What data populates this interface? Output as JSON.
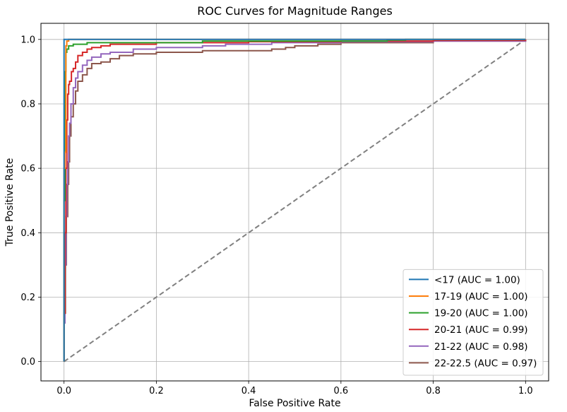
{
  "chart_data": {
    "type": "line",
    "title": "ROC Curves for Magnitude Ranges",
    "xlabel": "False Positive Rate",
    "ylabel": "True Positive Rate",
    "xlim": [
      -0.05,
      1.05
    ],
    "ylim": [
      -0.06,
      1.05
    ],
    "xticks": [
      0.0,
      0.2,
      0.4,
      0.6,
      0.8,
      1.0
    ],
    "yticks": [
      0.0,
      0.2,
      0.4,
      0.6,
      0.8,
      1.0
    ],
    "xtick_labels": [
      "0.0",
      "0.2",
      "0.4",
      "0.6",
      "0.8",
      "1.0"
    ],
    "ytick_labels": [
      "0.0",
      "0.2",
      "0.4",
      "0.6",
      "0.8",
      "1.0"
    ],
    "grid": true,
    "legend_position": "lower-right",
    "series": [
      {
        "name": "<17 (AUC = 1.00)",
        "color": "#1f77b4",
        "points": [
          [
            0,
            0
          ],
          [
            0,
            1.0
          ],
          [
            1.0,
            1.0
          ]
        ]
      },
      {
        "name": "17-19 (AUC = 1.00)",
        "color": "#ff7f0e",
        "points": [
          [
            0,
            0
          ],
          [
            0,
            0.6
          ],
          [
            0.002,
            0.65
          ],
          [
            0.004,
            0.98
          ],
          [
            0.006,
            0.995
          ],
          [
            0.01,
            1.0
          ],
          [
            1.0,
            1.0
          ]
        ]
      },
      {
        "name": "19-20 (AUC = 1.00)",
        "color": "#2ca02c",
        "points": [
          [
            0,
            0
          ],
          [
            0,
            0.5
          ],
          [
            0.002,
            0.9
          ],
          [
            0.004,
            0.96
          ],
          [
            0.006,
            0.97
          ],
          [
            0.01,
            0.98
          ],
          [
            0.02,
            0.985
          ],
          [
            0.05,
            0.99
          ],
          [
            0.15,
            0.99
          ],
          [
            0.3,
            0.995
          ],
          [
            0.7,
            0.998
          ],
          [
            0.74,
            1.0
          ],
          [
            1.0,
            1.0
          ]
        ]
      },
      {
        "name": "20-21 (AUC = 0.99)",
        "color": "#d62728",
        "points": [
          [
            0,
            0
          ],
          [
            0,
            0.15
          ],
          [
            0.002,
            0.4
          ],
          [
            0.004,
            0.6
          ],
          [
            0.006,
            0.75
          ],
          [
            0.008,
            0.83
          ],
          [
            0.01,
            0.86
          ],
          [
            0.012,
            0.87
          ],
          [
            0.016,
            0.9
          ],
          [
            0.02,
            0.91
          ],
          [
            0.025,
            0.93
          ],
          [
            0.03,
            0.95
          ],
          [
            0.04,
            0.96
          ],
          [
            0.05,
            0.97
          ],
          [
            0.06,
            0.975
          ],
          [
            0.08,
            0.98
          ],
          [
            0.1,
            0.985
          ],
          [
            0.2,
            0.99
          ],
          [
            0.4,
            0.993
          ],
          [
            0.6,
            0.995
          ],
          [
            0.8,
            0.997
          ],
          [
            1.0,
            1.0
          ]
        ]
      },
      {
        "name": "21-22 (AUC = 0.98)",
        "color": "#9467bd",
        "points": [
          [
            0,
            0
          ],
          [
            0,
            0.12
          ],
          [
            0.002,
            0.3
          ],
          [
            0.004,
            0.45
          ],
          [
            0.006,
            0.55
          ],
          [
            0.008,
            0.62
          ],
          [
            0.01,
            0.7
          ],
          [
            0.012,
            0.74
          ],
          [
            0.015,
            0.8
          ],
          [
            0.02,
            0.85
          ],
          [
            0.025,
            0.88
          ],
          [
            0.03,
            0.9
          ],
          [
            0.04,
            0.92
          ],
          [
            0.05,
            0.935
          ],
          [
            0.06,
            0.945
          ],
          [
            0.08,
            0.955
          ],
          [
            0.1,
            0.96
          ],
          [
            0.15,
            0.97
          ],
          [
            0.2,
            0.975
          ],
          [
            0.3,
            0.98
          ],
          [
            0.35,
            0.985
          ],
          [
            0.45,
            0.99
          ],
          [
            0.6,
            0.993
          ],
          [
            0.8,
            0.995
          ],
          [
            1.0,
            1.0
          ]
        ]
      },
      {
        "name": "22-22.5 (AUC = 0.97)",
        "color": "#8c564b",
        "points": [
          [
            0,
            0
          ],
          [
            0,
            0.15
          ],
          [
            0.003,
            0.3
          ],
          [
            0.005,
            0.45
          ],
          [
            0.008,
            0.55
          ],
          [
            0.01,
            0.62
          ],
          [
            0.012,
            0.7
          ],
          [
            0.015,
            0.76
          ],
          [
            0.02,
            0.8
          ],
          [
            0.025,
            0.84
          ],
          [
            0.03,
            0.87
          ],
          [
            0.04,
            0.89
          ],
          [
            0.05,
            0.91
          ],
          [
            0.06,
            0.925
          ],
          [
            0.08,
            0.93
          ],
          [
            0.1,
            0.94
          ],
          [
            0.12,
            0.95
          ],
          [
            0.15,
            0.955
          ],
          [
            0.2,
            0.96
          ],
          [
            0.3,
            0.965
          ],
          [
            0.45,
            0.97
          ],
          [
            0.48,
            0.975
          ],
          [
            0.5,
            0.98
          ],
          [
            0.55,
            0.985
          ],
          [
            0.6,
            0.99
          ],
          [
            0.8,
            0.995
          ],
          [
            1.0,
            1.0
          ]
        ]
      }
    ],
    "baseline": {
      "color": "#808080",
      "style": "dashed",
      "points": [
        [
          0,
          0
        ],
        [
          1,
          1
        ]
      ]
    }
  }
}
